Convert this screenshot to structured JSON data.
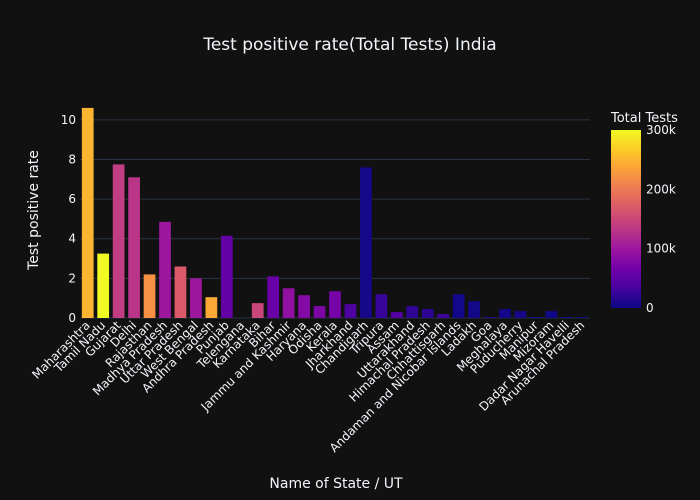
{
  "chart_data": {
    "type": "bar",
    "title": "Test positive rate(Total Tests) India",
    "xlabel": "Name of State / UT",
    "ylabel": "Test positive rate",
    "ylim": [
      0,
      11
    ],
    "yticks": [
      0,
      2,
      4,
      6,
      8,
      10
    ],
    "grid": true,
    "colorbar": {
      "title": "Total Tests",
      "min": 0,
      "max": 300000,
      "ticks": [
        0,
        100000,
        200000,
        300000
      ],
      "tick_labels": [
        "0",
        "100k",
        "200k",
        "300k"
      ],
      "colorscale": [
        "#0d0887",
        "#46039f",
        "#7201a8",
        "#9c179e",
        "#bd3786",
        "#d8576b",
        "#ed7953",
        "#fb9f3a",
        "#fdca26",
        "#f0f921"
      ]
    },
    "categories": [
      "Maharashtra",
      "Tamil Nadu",
      "Gujarat",
      "Delhi",
      "Rajasthan",
      "Madhya Pradesh",
      "Uttar Pradesh",
      "West Bengal",
      "Andhra Pradesh",
      "Punjab",
      "Telengana",
      "Karnataka",
      "Bihar",
      "Jammu and Kashmir",
      "Haryana",
      "Odisha",
      "Kerala",
      "Jharkhand",
      "Chandigarh",
      "Tripura",
      "Assam",
      "Uttarakhand",
      "Himachal Pradesh",
      "Chhattisgarh",
      "Andaman and Nicobar Islands",
      "Ladakh",
      "Goa",
      "Meghalaya",
      "Puducherry",
      "Manipur",
      "Mizoram",
      "Dadar Nagar Havelli",
      "Arunachal Pradesh"
    ],
    "values": [
      10.6,
      3.25,
      7.75,
      7.1,
      2.2,
      4.85,
      2.6,
      2.0,
      1.05,
      4.15,
      0.0,
      0.75,
      2.1,
      1.5,
      1.15,
      0.6,
      1.35,
      0.7,
      7.6,
      1.2,
      0.3,
      0.6,
      0.45,
      0.2,
      1.2,
      0.85,
      0.05,
      0.45,
      0.35,
      0.05,
      0.35,
      0.05,
      0.05
    ],
    "total_tests": [
      250000,
      300000,
      140000,
      130000,
      220000,
      100000,
      170000,
      100000,
      240000,
      55000,
      2000,
      150000,
      60000,
      90000,
      80000,
      75000,
      70000,
      40000,
      5000,
      25000,
      45000,
      20000,
      18000,
      30000,
      3000,
      3000,
      8000,
      4000,
      5000,
      4000,
      1000,
      500,
      1000
    ]
  }
}
